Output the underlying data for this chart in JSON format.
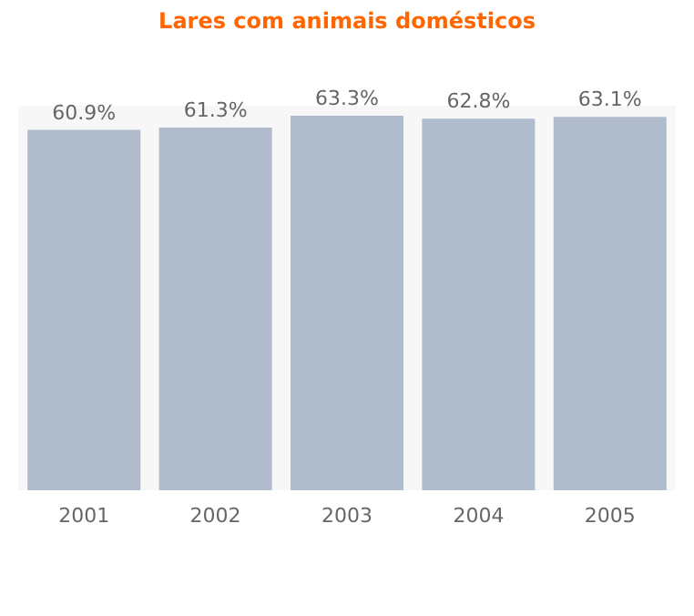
{
  "chart_data": {
    "type": "bar",
    "title": "Lares com animais domésticos",
    "categories": [
      "2001",
      "2002",
      "2003",
      "2004",
      "2005"
    ],
    "values": [
      60.9,
      61.3,
      63.3,
      62.8,
      63.1
    ],
    "value_labels": [
      "60.9%",
      "61.3%",
      "63.3%",
      "62.8%",
      "63.1%"
    ],
    "color": "#b0bccc",
    "grid": false
  }
}
